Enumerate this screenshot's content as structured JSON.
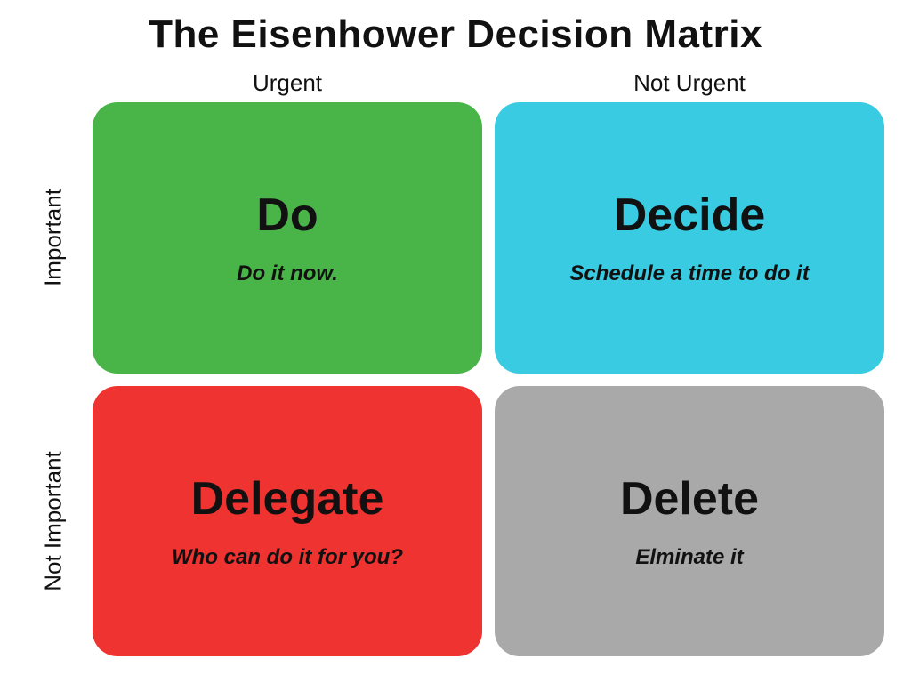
{
  "title": "The Eisenhower Decision Matrix",
  "title_fontsize": 44,
  "title_color": "#111111",
  "background_color": "#ffffff",
  "columns": {
    "urgent": "Urgent",
    "not_urgent": "Not Urgent",
    "fontsize": 26
  },
  "rows": {
    "important": "Important",
    "not_important": "Not Important",
    "fontsize": 26
  },
  "quad_style": {
    "border_radius": 28,
    "title_fontsize": 52,
    "subtitle_fontsize": 24,
    "text_color": "#111111"
  },
  "quadrants": {
    "do": {
      "title": "Do",
      "subtitle": "Do it now.",
      "bg": "#49b548"
    },
    "decide": {
      "title": "Decide",
      "subtitle": "Schedule a time to do it",
      "bg": "#38cbe2"
    },
    "delegate": {
      "title": "Delegate",
      "subtitle": "Who can do it for you?",
      "bg": "#ef3330"
    },
    "delete": {
      "title": "Delete",
      "subtitle": "Elminate it",
      "bg": "#a9a9a9"
    }
  }
}
